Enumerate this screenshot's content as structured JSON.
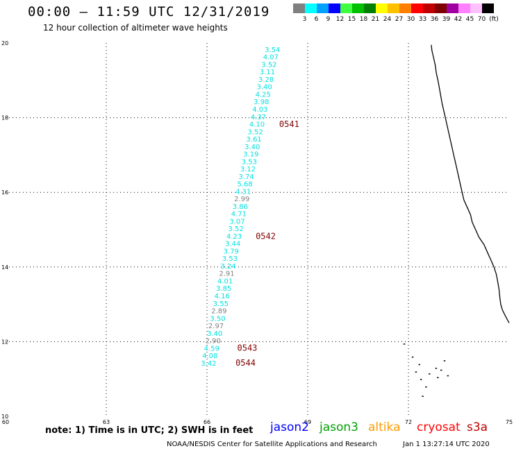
{
  "header": {
    "title": "00:00 – 11:59 UTC 12/31/2019",
    "subtitle": "12 hour collection of altimeter wave heights"
  },
  "legend": {
    "unit": "(ft)",
    "bins": [
      {
        "color": "#808080",
        "label": "3"
      },
      {
        "color": "#00ffff",
        "label": "6"
      },
      {
        "color": "#00a0ff",
        "label": "9"
      },
      {
        "color": "#0000ff",
        "label": "12"
      },
      {
        "color": "#40ff40",
        "label": "15"
      },
      {
        "color": "#00c000",
        "label": "18"
      },
      {
        "color": "#008000",
        "label": "21"
      },
      {
        "color": "#ffff00",
        "label": "24"
      },
      {
        "color": "#ffc000",
        "label": "27"
      },
      {
        "color": "#ff8000",
        "label": "30"
      },
      {
        "color": "#ff0000",
        "label": "33"
      },
      {
        "color": "#c00000",
        "label": "36"
      },
      {
        "color": "#800000",
        "label": "39"
      },
      {
        "color": "#a000a0",
        "label": "42"
      },
      {
        "color": "#ff80ff",
        "label": "45"
      },
      {
        "color": "#ffc0ff",
        "label": "70"
      },
      {
        "color": "#000000",
        "label": ""
      }
    ]
  },
  "map": {
    "x_range": [
      60,
      75
    ],
    "y_range": [
      10,
      20
    ],
    "x_ticks": [
      "60",
      "63",
      "66",
      "69",
      "72",
      "75"
    ],
    "y_ticks": [
      "10",
      "12",
      "14",
      "16",
      "18",
      "20"
    ],
    "label_color": "#00e0e0",
    "gray_color": "#808080",
    "time_color": "#800000",
    "wave_labels": [
      {
        "value": "3.54",
        "lat": 19.76,
        "lon": 67.95
      },
      {
        "value": "4.07",
        "lat": 19.56,
        "lon": 67.9
      },
      {
        "value": "3.52",
        "lat": 19.36,
        "lon": 67.85
      },
      {
        "value": "3.11",
        "lat": 19.16,
        "lon": 67.8
      },
      {
        "value": "3.28",
        "lat": 18.96,
        "lon": 67.76
      },
      {
        "value": "3.40",
        "lat": 18.76,
        "lon": 67.71
      },
      {
        "value": "4.25",
        "lat": 18.56,
        "lon": 67.67
      },
      {
        "value": "3.98",
        "lat": 18.36,
        "lon": 67.62
      },
      {
        "value": "4.03",
        "lat": 18.16,
        "lon": 67.58
      },
      {
        "value": "4.37",
        "lat": 17.96,
        "lon": 67.53
      },
      {
        "value": "4.10",
        "lat": 17.76,
        "lon": 67.49
      },
      {
        "value": "3.52",
        "lat": 17.56,
        "lon": 67.44
      },
      {
        "value": "3.61",
        "lat": 17.36,
        "lon": 67.4
      },
      {
        "value": "3.40",
        "lat": 17.16,
        "lon": 67.35
      },
      {
        "value": "3.19",
        "lat": 16.96,
        "lon": 67.31
      },
      {
        "value": "3.53",
        "lat": 16.76,
        "lon": 67.26
      },
      {
        "value": "3.12",
        "lat": 16.56,
        "lon": 67.22
      },
      {
        "value": "3.74",
        "lat": 16.36,
        "lon": 67.17
      },
      {
        "value": "5.68",
        "lat": 16.16,
        "lon": 67.13
      },
      {
        "value": "4.31",
        "lat": 15.96,
        "lon": 67.08
      },
      {
        "value": "2.99",
        "lat": 15.76,
        "lon": 67.04,
        "gray": true
      },
      {
        "value": "3.86",
        "lat": 15.56,
        "lon": 66.99
      },
      {
        "value": "4.71",
        "lat": 15.36,
        "lon": 66.95
      },
      {
        "value": "3.07",
        "lat": 15.16,
        "lon": 66.9
      },
      {
        "value": "3.52",
        "lat": 14.96,
        "lon": 66.86
      },
      {
        "value": "4.23",
        "lat": 14.76,
        "lon": 66.81
      },
      {
        "value": "3.44",
        "lat": 14.56,
        "lon": 66.77
      },
      {
        "value": "3.79",
        "lat": 14.36,
        "lon": 66.72
      },
      {
        "value": "3.53",
        "lat": 14.16,
        "lon": 66.68
      },
      {
        "value": "3.24",
        "lat": 13.96,
        "lon": 66.63
      },
      {
        "value": "2.91",
        "lat": 13.76,
        "lon": 66.59,
        "gray": true
      },
      {
        "value": "4.01",
        "lat": 13.56,
        "lon": 66.54
      },
      {
        "value": "3.85",
        "lat": 13.36,
        "lon": 66.5
      },
      {
        "value": "4.16",
        "lat": 13.16,
        "lon": 66.45
      },
      {
        "value": "3.55",
        "lat": 12.96,
        "lon": 66.41
      },
      {
        "value": "2.89",
        "lat": 12.76,
        "lon": 66.36,
        "gray": true
      },
      {
        "value": "3.50",
        "lat": 12.56,
        "lon": 66.32
      },
      {
        "value": "2.97",
        "lat": 12.36,
        "lon": 66.27,
        "gray": true
      },
      {
        "value": "3.40",
        "lat": 12.16,
        "lon": 66.23
      },
      {
        "value": "2.90",
        "lat": 11.96,
        "lon": 66.18,
        "gray": true
      },
      {
        "value": "4.59",
        "lat": 11.76,
        "lon": 66.14
      },
      {
        "value": "4.08",
        "lat": 11.56,
        "lon": 66.09
      },
      {
        "value": "3.42",
        "lat": 11.36,
        "lon": 66.05
      }
    ],
    "time_labels": [
      {
        "value": "0541",
        "lat": 17.75,
        "lon": 68.15
      },
      {
        "value": "0542",
        "lat": 14.75,
        "lon": 67.45
      },
      {
        "value": "0543",
        "lat": 11.76,
        "lon": 66.9
      },
      {
        "value": "0544",
        "lat": 11.36,
        "lon": 66.85
      }
    ],
    "coastline": [
      [
        72.68,
        19.95
      ],
      [
        72.7,
        19.8
      ],
      [
        72.75,
        19.6
      ],
      [
        72.8,
        19.4
      ],
      [
        72.83,
        19.2
      ],
      [
        72.88,
        19.0
      ],
      [
        72.92,
        18.8
      ],
      [
        72.96,
        18.6
      ],
      [
        73.0,
        18.4
      ],
      [
        73.05,
        18.2
      ],
      [
        73.1,
        18.0
      ],
      [
        73.15,
        17.8
      ],
      [
        73.2,
        17.6
      ],
      [
        73.25,
        17.4
      ],
      [
        73.3,
        17.2
      ],
      [
        73.35,
        17.0
      ],
      [
        73.4,
        16.8
      ],
      [
        73.45,
        16.6
      ],
      [
        73.5,
        16.4
      ],
      [
        73.55,
        16.2
      ],
      [
        73.6,
        16.0
      ],
      [
        73.65,
        15.8
      ],
      [
        73.75,
        15.6
      ],
      [
        73.85,
        15.4
      ],
      [
        73.9,
        15.2
      ],
      [
        74.0,
        15.0
      ],
      [
        74.1,
        14.8
      ],
      [
        74.25,
        14.6
      ],
      [
        74.35,
        14.4
      ],
      [
        74.45,
        14.2
      ],
      [
        74.55,
        14.0
      ],
      [
        74.62,
        13.8
      ],
      [
        74.66,
        13.6
      ],
      [
        74.7,
        13.4
      ],
      [
        74.72,
        13.2
      ],
      [
        74.75,
        13.0
      ],
      [
        74.8,
        12.85
      ],
      [
        74.88,
        12.7
      ],
      [
        75.0,
        12.5
      ]
    ],
    "islands": [
      [
        71.85,
        11.95
      ],
      [
        72.1,
        11.6
      ],
      [
        72.3,
        11.4
      ],
      [
        72.2,
        11.2
      ],
      [
        72.35,
        11.0
      ],
      [
        72.6,
        11.15
      ],
      [
        72.8,
        11.3
      ],
      [
        72.95,
        11.25
      ],
      [
        73.05,
        11.5
      ],
      [
        73.15,
        11.1
      ],
      [
        72.5,
        10.8
      ],
      [
        72.4,
        10.55
      ],
      [
        72.85,
        11.05
      ]
    ]
  },
  "footer": {
    "note": "note: 1) Time is in UTC; 2) SWH is in feet",
    "satellites": [
      {
        "name": "jason2",
        "color": "#0000ff"
      },
      {
        "name": "jason3",
        "color": "#00a000"
      },
      {
        "name": "altika",
        "color": "#ff9900"
      },
      {
        "name": "cryosat",
        "color": "#ff0000"
      },
      {
        "name": "s3a",
        "color": "#c00000"
      }
    ],
    "credit": "NOAA/NESDIS Center for Satellite Applications and Research",
    "timestamp": "Jan  1 13:27:14 UTC 2020"
  }
}
